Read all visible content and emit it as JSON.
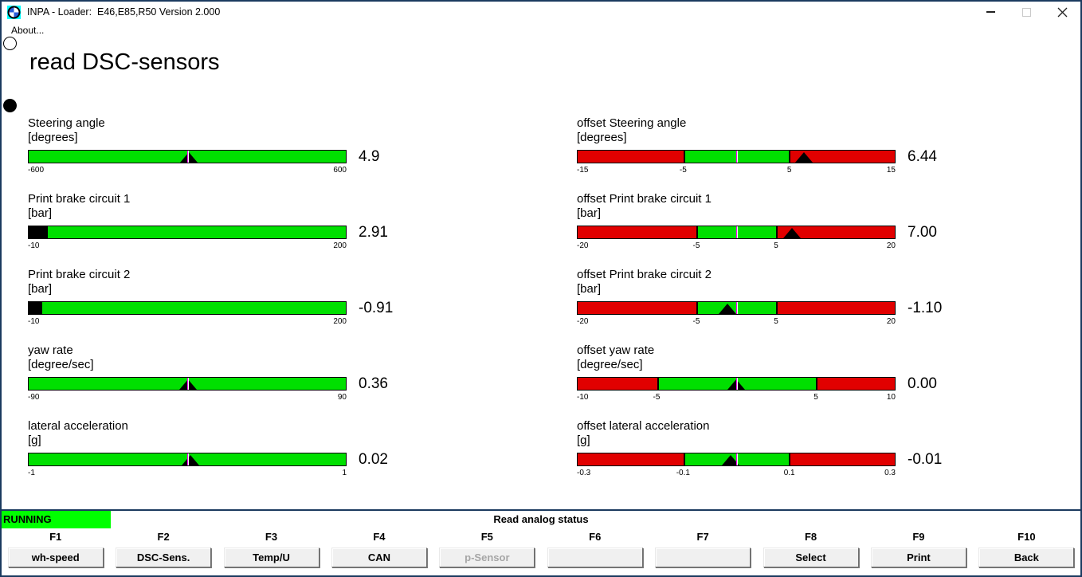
{
  "window": {
    "title": "INPA - Loader:  E46,E85,R50 Version 2.000",
    "menu_items": [
      "About..."
    ]
  },
  "page_title": "read DSC-sensors",
  "colors": {
    "bar_green": "#00e000",
    "bar_red": "#e10000",
    "running_bg": "#00ff00",
    "window_border": "#1b3a5f",
    "zero_marker": "#ff00ff"
  },
  "gauges_left": [
    {
      "label": "Steering angle",
      "unit": "[degrees]",
      "value": "4.9",
      "style": "pointer",
      "pointer_pct": 50.41,
      "center_marker": true,
      "zones": [
        {
          "color": "green",
          "from": 0,
          "to": 100
        }
      ],
      "ticks": [
        {
          "text": "-600",
          "pct": 0,
          "align": "left"
        },
        {
          "text": "600",
          "pct": 100,
          "align": "right"
        }
      ]
    },
    {
      "label": "Print brake circuit 1",
      "unit": "[bar]",
      "value": "2.91",
      "style": "fill",
      "fill_pct": 6.15,
      "center_marker": false,
      "zones": [
        {
          "color": "green",
          "from": 0,
          "to": 100
        }
      ],
      "ticks": [
        {
          "text": "-10",
          "pct": 0,
          "align": "left"
        },
        {
          "text": "200",
          "pct": 100,
          "align": "right"
        }
      ]
    },
    {
      "label": "Print brake circuit 2",
      "unit": "[bar]",
      "value": "-0.91",
      "style": "fill",
      "fill_pct": 4.33,
      "center_marker": false,
      "zones": [
        {
          "color": "green",
          "from": 0,
          "to": 100
        }
      ],
      "ticks": [
        {
          "text": "-10",
          "pct": 0,
          "align": "left"
        },
        {
          "text": "200",
          "pct": 100,
          "align": "right"
        }
      ]
    },
    {
      "label": "yaw rate",
      "unit": "[degree/sec]",
      "value": "0.36",
      "style": "pointer",
      "pointer_pct": 50.2,
      "center_marker": true,
      "zones": [
        {
          "color": "green",
          "from": 0,
          "to": 100
        }
      ],
      "ticks": [
        {
          "text": "-90",
          "pct": 0,
          "align": "left"
        },
        {
          "text": "90",
          "pct": 100,
          "align": "right"
        }
      ]
    },
    {
      "label": "lateral acceleration",
      "unit": "[g]",
      "value": "0.02",
      "style": "pointer",
      "pointer_pct": 51.0,
      "center_marker": true,
      "zones": [
        {
          "color": "green",
          "from": 0,
          "to": 100
        }
      ],
      "ticks": [
        {
          "text": "-1",
          "pct": 0,
          "align": "left"
        },
        {
          "text": "1",
          "pct": 100,
          "align": "right"
        }
      ]
    }
  ],
  "gauges_right": [
    {
      "label": "offset Steering angle",
      "unit": "[degrees]",
      "value": "6.44",
      "style": "pointer",
      "pointer_pct": 71.47,
      "center_marker": true,
      "zones": [
        {
          "color": "red",
          "from": 0,
          "to": 33.33
        },
        {
          "color": "green",
          "from": 33.33,
          "to": 66.67
        },
        {
          "color": "red",
          "from": 66.67,
          "to": 100
        }
      ],
      "ticks": [
        {
          "text": "-15",
          "pct": 0,
          "align": "left"
        },
        {
          "text": "-5",
          "pct": 33.33,
          "align": "center"
        },
        {
          "text": "5",
          "pct": 66.67,
          "align": "center"
        },
        {
          "text": "15",
          "pct": 100,
          "align": "right"
        }
      ]
    },
    {
      "label": "offset Print brake circuit 1",
      "unit": "[bar]",
      "value": "7.00",
      "style": "pointer",
      "pointer_pct": 67.5,
      "center_marker": true,
      "zones": [
        {
          "color": "red",
          "from": 0,
          "to": 37.5
        },
        {
          "color": "green",
          "from": 37.5,
          "to": 62.5
        },
        {
          "color": "red",
          "from": 62.5,
          "to": 100
        }
      ],
      "ticks": [
        {
          "text": "-20",
          "pct": 0,
          "align": "left"
        },
        {
          "text": "-5",
          "pct": 37.5,
          "align": "center"
        },
        {
          "text": "5",
          "pct": 62.5,
          "align": "center"
        },
        {
          "text": "20",
          "pct": 100,
          "align": "right"
        }
      ]
    },
    {
      "label": "offset Print brake circuit 2",
      "unit": "[bar]",
      "value": "-1.10",
      "style": "pointer",
      "pointer_pct": 47.25,
      "center_marker": true,
      "zones": [
        {
          "color": "red",
          "from": 0,
          "to": 37.5
        },
        {
          "color": "green",
          "from": 37.5,
          "to": 62.5
        },
        {
          "color": "red",
          "from": 62.5,
          "to": 100
        }
      ],
      "ticks": [
        {
          "text": "-20",
          "pct": 0,
          "align": "left"
        },
        {
          "text": "-5",
          "pct": 37.5,
          "align": "center"
        },
        {
          "text": "5",
          "pct": 62.5,
          "align": "center"
        },
        {
          "text": "20",
          "pct": 100,
          "align": "right"
        }
      ]
    },
    {
      "label": "offset yaw rate",
      "unit": "[degree/sec]",
      "value": "0.00",
      "style": "pointer",
      "pointer_pct": 50.0,
      "center_marker": true,
      "zones": [
        {
          "color": "red",
          "from": 0,
          "to": 25
        },
        {
          "color": "green",
          "from": 25,
          "to": 75
        },
        {
          "color": "red",
          "from": 75,
          "to": 100
        }
      ],
      "ticks": [
        {
          "text": "-10",
          "pct": 0,
          "align": "left"
        },
        {
          "text": "-5",
          "pct": 25,
          "align": "center"
        },
        {
          "text": "5",
          "pct": 75,
          "align": "center"
        },
        {
          "text": "10",
          "pct": 100,
          "align": "right"
        }
      ]
    },
    {
      "label": "offset lateral acceleration",
      "unit": "[g]",
      "value": "-0.01",
      "style": "pointer",
      "pointer_pct": 48.33,
      "center_marker": true,
      "zones": [
        {
          "color": "red",
          "from": 0,
          "to": 33.33
        },
        {
          "color": "green",
          "from": 33.33,
          "to": 66.67
        },
        {
          "color": "red",
          "from": 66.67,
          "to": 100
        }
      ],
      "ticks": [
        {
          "text": "-0.3",
          "pct": 0,
          "align": "left"
        },
        {
          "text": "-0.1",
          "pct": 33.33,
          "align": "center"
        },
        {
          "text": "0.1",
          "pct": 66.67,
          "align": "center"
        },
        {
          "text": "0.3",
          "pct": 100,
          "align": "right"
        }
      ]
    }
  ],
  "status_bar": {
    "state": "RUNNING",
    "message": "Read analog status"
  },
  "function_keys": [
    {
      "key": "F1",
      "label": "wh-speed",
      "enabled": true
    },
    {
      "key": "F2",
      "label": "DSC-Sens.",
      "enabled": true
    },
    {
      "key": "F3",
      "label": "Temp/U",
      "enabled": true
    },
    {
      "key": "F4",
      "label": "CAN",
      "enabled": true
    },
    {
      "key": "F5",
      "label": "p-Sensor",
      "enabled": false
    },
    {
      "key": "F6",
      "label": "",
      "enabled": true
    },
    {
      "key": "F7",
      "label": "",
      "enabled": true
    },
    {
      "key": "F8",
      "label": "Select",
      "enabled": true
    },
    {
      "key": "F9",
      "label": "Print",
      "enabled": true
    },
    {
      "key": "F10",
      "label": "Back",
      "enabled": true
    }
  ]
}
